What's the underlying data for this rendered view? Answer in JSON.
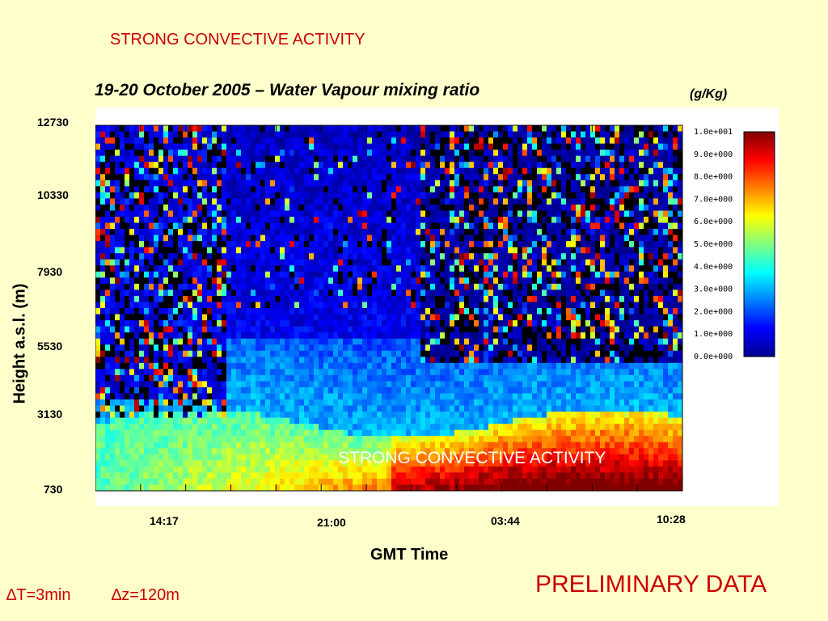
{
  "slide": {
    "top_heading": "STRONG CONVECTIVE ACTIVITY",
    "preliminary": "PRELIMINARY DATA",
    "resolution_time": "∆T=3min",
    "resolution_height": "∆z=120m"
  },
  "chart_data": {
    "type": "heatmap",
    "title": "19-20 October 2005 – Water Vapour mixing ratio",
    "units": "(g/Kg)",
    "xlabel": "GMT Time",
    "ylabel": "Height a.s.l. (m)",
    "x_ticks": [
      "14:17",
      "21:00",
      "03:44",
      "10:28"
    ],
    "y_ticks": [
      "12730",
      "10330",
      "7930",
      "5530",
      "3130",
      "730"
    ],
    "y_range": [
      730,
      12730
    ],
    "annotation": "STRONG CONVECTIVE ACTIVITY",
    "colorbar": {
      "range": [
        0,
        10
      ],
      "labels": [
        "1.0e+001",
        "9.0e+000",
        "8.0e+000",
        "7.0e+000",
        "6.0e+000",
        "5.0e+000",
        "4.0e+000",
        "3.0e+000",
        "2.0e+000",
        "1.0e+000",
        "0.0e+000"
      ],
      "colors": [
        "#00008f",
        "#0000ff",
        "#0080ff",
        "#00ffff",
        "#80ff80",
        "#ffff00",
        "#ff8000",
        "#ff0000",
        "#800000"
      ]
    }
  }
}
